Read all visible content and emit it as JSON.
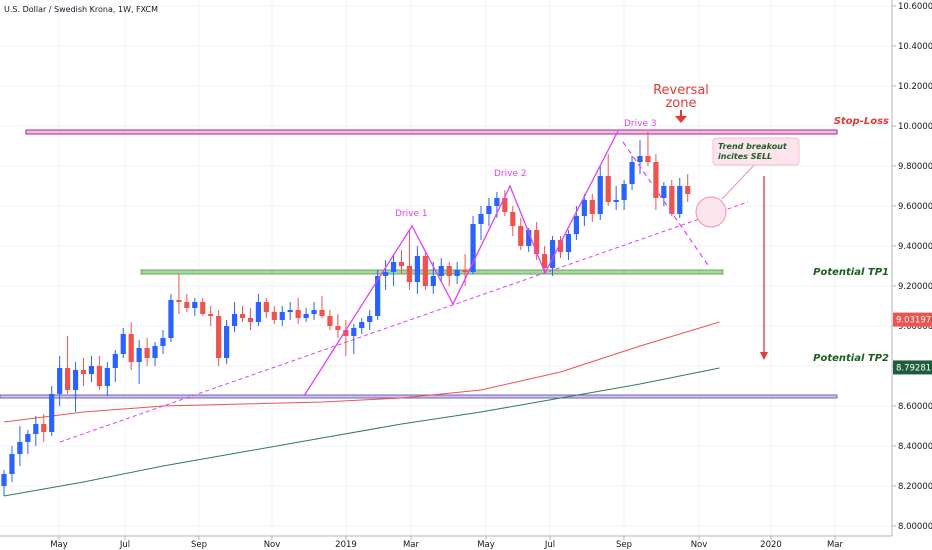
{
  "title": "U.S. Dollar / Swedish Krona, 1W, FXCM",
  "colors": {
    "up": "#2962ff",
    "down": "#ef5350",
    "pattern": "#e040fb",
    "support": "#6aa84f",
    "ma_fast": "#ef5350",
    "ma_slow": "#2e7d55",
    "hline": "#9c27b0",
    "arrow": "#e53935"
  },
  "chart_data": {
    "type": "candlestick",
    "x_tick_labels": [
      "May",
      "Jul",
      "Sep",
      "Nov",
      "2019",
      "Mar",
      "May",
      "Jul",
      "Sep",
      "Nov",
      "2020",
      "Mar"
    ],
    "y_tick_labels": [
      "8.00000",
      "8.20000",
      "8.40000",
      "8.60000",
      "8.80000",
      "9.00000",
      "9.20000",
      "9.40000",
      "9.60000",
      "9.80000",
      "10.00000",
      "10.20000",
      "10.40000",
      "10.60000"
    ],
    "ylim": [
      7.97,
      10.63
    ],
    "price_labels": [
      {
        "value": 9.03197,
        "text": "9.03197",
        "color": "#ef5350"
      },
      {
        "value": 8.79281,
        "text": "8.79281",
        "color": "#1e5e3a"
      }
    ],
    "levels": {
      "stop_loss": 9.97,
      "tp1": 9.27,
      "lower_box": 8.65
    },
    "candles_ohlc": [
      [
        8.2,
        8.28,
        8.15,
        8.26
      ],
      [
        8.26,
        8.4,
        8.22,
        8.36
      ],
      [
        8.36,
        8.5,
        8.3,
        8.42
      ],
      [
        8.42,
        8.48,
        8.36,
        8.46
      ],
      [
        8.46,
        8.55,
        8.4,
        8.51
      ],
      [
        8.51,
        8.56,
        8.42,
        8.47
      ],
      [
        8.47,
        8.7,
        8.45,
        8.66
      ],
      [
        8.66,
        8.85,
        8.6,
        8.79
      ],
      [
        8.79,
        8.95,
        8.66,
        8.68
      ],
      [
        8.68,
        8.82,
        8.57,
        8.78
      ],
      [
        8.78,
        8.84,
        8.7,
        8.76
      ],
      [
        8.76,
        8.85,
        8.72,
        8.8
      ],
      [
        8.8,
        8.85,
        8.68,
        8.7
      ],
      [
        8.7,
        8.82,
        8.65,
        8.79
      ],
      [
        8.79,
        8.88,
        8.72,
        8.86
      ],
      [
        8.86,
        8.99,
        8.84,
        8.96
      ],
      [
        8.96,
        9.02,
        8.78,
        8.82
      ],
      [
        8.82,
        8.93,
        8.71,
        8.89
      ],
      [
        8.89,
        8.94,
        8.8,
        8.84
      ],
      [
        8.84,
        8.92,
        8.8,
        8.9
      ],
      [
        8.9,
        8.98,
        8.86,
        8.94
      ],
      [
        8.94,
        9.16,
        8.92,
        9.13
      ],
      [
        9.13,
        9.26,
        9.06,
        9.12
      ],
      [
        9.12,
        9.16,
        9.07,
        9.09
      ],
      [
        9.09,
        9.14,
        9.05,
        9.12
      ],
      [
        9.12,
        9.14,
        9.05,
        9.06
      ],
      [
        9.06,
        9.1,
        9.0,
        9.05
      ],
      [
        9.05,
        9.08,
        8.8,
        8.84
      ],
      [
        8.84,
        9.03,
        8.81,
        9.0
      ],
      [
        9.0,
        9.12,
        8.97,
        9.06
      ],
      [
        9.06,
        9.1,
        9.02,
        9.04
      ],
      [
        9.04,
        9.09,
        8.98,
        9.02
      ],
      [
        9.02,
        9.16,
        9.0,
        9.12
      ],
      [
        9.12,
        9.14,
        9.04,
        9.07
      ],
      [
        9.07,
        9.1,
        9.01,
        9.03
      ],
      [
        9.03,
        9.1,
        9.0,
        9.07
      ],
      [
        9.07,
        9.12,
        9.03,
        9.08
      ],
      [
        9.08,
        9.14,
        9.01,
        9.04
      ],
      [
        9.04,
        9.09,
        9.02,
        9.06
      ],
      [
        9.06,
        9.12,
        9.03,
        9.08
      ],
      [
        9.08,
        9.15,
        9.04,
        9.05
      ],
      [
        9.05,
        9.08,
        8.98,
        9.0
      ],
      [
        9.0,
        9.06,
        8.94,
        8.98
      ],
      [
        8.98,
        9.03,
        8.85,
        8.95
      ],
      [
        8.95,
        9.01,
        8.86,
        8.99
      ],
      [
        8.99,
        9.04,
        8.96,
        9.02
      ],
      [
        9.02,
        9.08,
        8.98,
        9.05
      ],
      [
        9.05,
        9.28,
        9.03,
        9.25
      ],
      [
        9.25,
        9.33,
        9.18,
        9.27
      ],
      [
        9.27,
        9.36,
        9.2,
        9.32
      ],
      [
        9.32,
        9.38,
        9.26,
        9.3
      ],
      [
        9.3,
        9.48,
        9.18,
        9.22
      ],
      [
        9.22,
        9.4,
        9.16,
        9.35
      ],
      [
        9.35,
        9.37,
        9.18,
        9.2
      ],
      [
        9.2,
        9.32,
        9.16,
        9.25
      ],
      [
        9.25,
        9.34,
        9.22,
        9.3
      ],
      [
        9.3,
        9.32,
        9.2,
        9.25
      ],
      [
        9.25,
        9.32,
        9.21,
        9.28
      ],
      [
        9.28,
        9.36,
        9.2,
        9.27
      ],
      [
        9.27,
        9.55,
        9.26,
        9.51
      ],
      [
        9.51,
        9.6,
        9.43,
        9.56
      ],
      [
        9.56,
        9.64,
        9.5,
        9.6
      ],
      [
        9.6,
        9.67,
        9.54,
        9.64
      ],
      [
        9.64,
        9.68,
        9.55,
        9.57
      ],
      [
        9.57,
        9.6,
        9.45,
        9.5
      ],
      [
        9.5,
        9.54,
        9.38,
        9.4
      ],
      [
        9.4,
        9.49,
        9.37,
        9.48
      ],
      [
        9.48,
        9.52,
        9.33,
        9.36
      ],
      [
        9.36,
        9.4,
        9.26,
        9.29
      ],
      [
        9.29,
        9.45,
        9.25,
        9.43
      ],
      [
        9.43,
        9.45,
        9.34,
        9.37
      ],
      [
        9.37,
        9.48,
        9.33,
        9.46
      ],
      [
        9.46,
        9.6,
        9.43,
        9.55
      ],
      [
        9.55,
        9.66,
        9.5,
        9.63
      ],
      [
        9.63,
        9.66,
        9.52,
        9.56
      ],
      [
        9.56,
        9.8,
        9.53,
        9.75
      ],
      [
        9.75,
        9.86,
        9.6,
        9.62
      ],
      [
        9.62,
        9.7,
        9.58,
        9.63
      ],
      [
        9.63,
        9.73,
        9.58,
        9.71
      ],
      [
        9.71,
        9.85,
        9.68,
        9.82
      ],
      [
        9.82,
        9.93,
        9.76,
        9.85
      ],
      [
        9.85,
        9.97,
        9.8,
        9.82
      ],
      [
        9.82,
        9.86,
        9.58,
        9.64
      ],
      [
        9.64,
        9.72,
        9.6,
        9.7
      ],
      [
        9.7,
        9.73,
        9.55,
        9.56
      ],
      [
        9.56,
        9.74,
        9.54,
        9.7
      ],
      [
        9.7,
        9.76,
        9.62,
        9.66
      ]
    ],
    "ma_fast": [
      [
        0,
        8.52
      ],
      [
        10,
        8.57
      ],
      [
        20,
        8.6
      ],
      [
        30,
        8.61
      ],
      [
        40,
        8.62
      ],
      [
        50,
        8.64
      ],
      [
        60,
        8.68
      ],
      [
        70,
        8.77
      ],
      [
        80,
        8.9
      ],
      [
        90,
        9.02
      ]
    ],
    "ma_slow": [
      [
        0,
        8.15
      ],
      [
        10,
        8.22
      ],
      [
        20,
        8.3
      ],
      [
        30,
        8.37
      ],
      [
        40,
        8.44
      ],
      [
        50,
        8.51
      ],
      [
        60,
        8.57
      ],
      [
        70,
        8.64
      ],
      [
        80,
        8.71
      ],
      [
        90,
        8.79
      ]
    ]
  },
  "annotations": {
    "drive1": "Drive 1",
    "drive2": "Drive 2",
    "drive3": "Drive 3",
    "reversal_line1": "Reversal",
    "reversal_line2": "zone",
    "stop_loss": "Stop-Loss",
    "tp1": "Potential TP1",
    "tp2": "Potential TP2",
    "callout_line1": "Trend breakout",
    "callout_line2": "incites SELL"
  }
}
